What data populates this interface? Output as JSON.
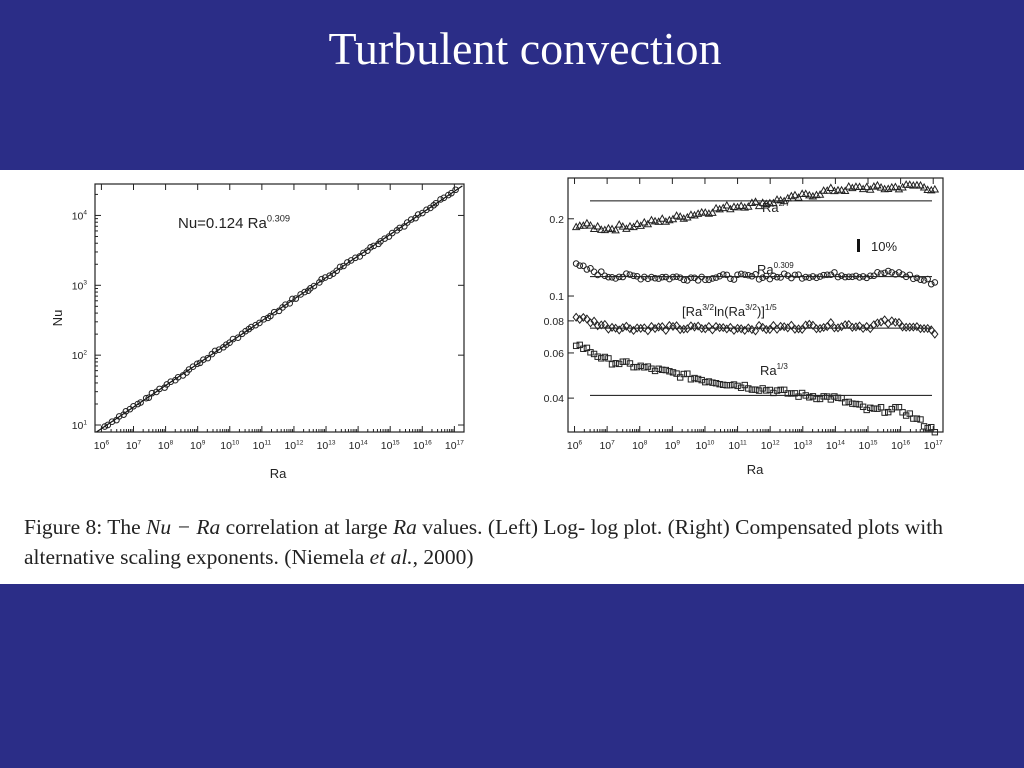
{
  "slide": {
    "title": "Turbulent convection"
  },
  "caption": {
    "figure_label": "Figure 8: The ",
    "math1": "Nu − Ra",
    "text1": " correlation at large ",
    "math2": "Ra",
    "text2": " values. (Left) Log- log plot. (Right) Compensated plots with alternative scaling exponents. (Niemela ",
    "etal": "et al.",
    "text3": ", 2000)"
  },
  "colors": {
    "background": "#2b2d87",
    "panel": "#ffffff",
    "ink": "#222222"
  },
  "chart_data": [
    {
      "type": "scatter",
      "log_x": true,
      "log_y": true,
      "xlabel": "Ra",
      "ylabel": "Nu",
      "xlim_exp": [
        5.8,
        17.3
      ],
      "ylim_exp": [
        0.9,
        4.45
      ],
      "xticks": [
        "10^6",
        "10^7",
        "10^8",
        "10^9",
        "10^10",
        "10^11",
        "10^12",
        "10^13",
        "10^14",
        "10^15",
        "10^16",
        "10^17"
      ],
      "yticks": [
        "10^1",
        "10^2",
        "10^3",
        "10^4"
      ],
      "annotation": {
        "base": "Nu=0.124 Ra",
        "exp": "0.309"
      },
      "fit": {
        "prefactor": 0.124,
        "exponent": 0.309
      },
      "grid": false,
      "marker": "circle"
    },
    {
      "type": "scatter",
      "log_x": true,
      "log_y": true,
      "xlabel": "Ra",
      "xlim_exp": [
        5.8,
        17.3
      ],
      "ylim_exp": [
        -1.53,
        -0.54
      ],
      "xticks": [
        "10^6",
        "10^7",
        "10^8",
        "10^9",
        "10^10",
        "10^11",
        "10^12",
        "10^13",
        "10^14",
        "10^15",
        "10^16",
        "10^17"
      ],
      "yticks": [
        {
          "value": 0.2,
          "label": "0.2"
        },
        {
          "value": 0.1,
          "label": "0.1"
        },
        {
          "value": 0.08,
          "label": "0.08"
        },
        {
          "value": 0.06,
          "label": "0.06"
        },
        {
          "value": 0.04,
          "label": "0.04"
        }
      ],
      "error_bar_label": "10%",
      "series": [
        {
          "name": "Ra^2/7",
          "label_base": "Ra",
          "label_exp": "2/7",
          "marker": "triangle",
          "line_at": 0.235,
          "points": [
            [
              6.05,
              0.19
            ],
            [
              7,
              0.183
            ],
            [
              8,
              0.19
            ],
            [
              9,
              0.2
            ],
            [
              10,
              0.213
            ],
            [
              11,
              0.225
            ],
            [
              12,
              0.232
            ],
            [
              13,
              0.245
            ],
            [
              14,
              0.26
            ],
            [
              14.5,
              0.262
            ],
            [
              15,
              0.265
            ],
            [
              15.5,
              0.263
            ],
            [
              16,
              0.266
            ],
            [
              16.5,
              0.27
            ],
            [
              17,
              0.262
            ]
          ]
        },
        {
          "name": "Ra^0.309",
          "label_base": "Ra",
          "label_exp": "0.309",
          "marker": "circle",
          "line_at": 0.119,
          "points": [
            [
              6.05,
              0.131
            ],
            [
              7,
              0.12
            ],
            [
              8,
              0.119
            ],
            [
              9,
              0.118
            ],
            [
              10,
              0.118
            ],
            [
              11,
              0.119
            ],
            [
              12,
              0.119
            ],
            [
              13,
              0.12
            ],
            [
              14,
              0.121
            ],
            [
              14.5,
              0.121
            ],
            [
              15,
              0.12
            ],
            [
              15.5,
              0.123
            ],
            [
              16,
              0.122
            ],
            [
              16.5,
              0.117
            ],
            [
              17,
              0.113
            ]
          ]
        },
        {
          "name": "[Ra^3/2 ln(Ra^3/2)]^1/5",
          "label_base": "[Ra",
          "label_exp": "3/2",
          "label_mid": "ln(Ra",
          "label_exp2": "3/2",
          "label_end": ")]",
          "label_exp3": "1/5",
          "marker": "diamond",
          "line_at": 0.075,
          "points": [
            [
              6.05,
              0.083
            ],
            [
              7,
              0.076
            ],
            [
              8,
              0.075
            ],
            [
              9,
              0.075
            ],
            [
              10,
              0.075
            ],
            [
              11,
              0.075
            ],
            [
              12,
              0.075
            ],
            [
              13,
              0.076
            ],
            [
              14,
              0.077
            ],
            [
              14.5,
              0.077
            ],
            [
              15,
              0.076
            ],
            [
              15.5,
              0.079
            ],
            [
              16,
              0.078
            ],
            [
              16.5,
              0.075
            ],
            [
              17,
              0.072
            ]
          ]
        },
        {
          "name": "Ra^1/3",
          "label_base": "Ra",
          "label_exp": "1/3",
          "marker": "square",
          "line_at": 0.041,
          "points": [
            [
              6.05,
              0.065
            ],
            [
              7,
              0.056
            ],
            [
              8,
              0.053
            ],
            [
              9,
              0.05
            ],
            [
              10,
              0.047
            ],
            [
              11,
              0.045
            ],
            [
              12,
              0.043
            ],
            [
              13,
              0.041
            ],
            [
              14,
              0.04
            ],
            [
              14.5,
              0.038
            ],
            [
              15,
              0.036
            ],
            [
              15.5,
              0.036
            ],
            [
              16,
              0.036
            ],
            [
              16.5,
              0.033
            ],
            [
              17,
              0.03
            ]
          ]
        }
      ]
    }
  ]
}
